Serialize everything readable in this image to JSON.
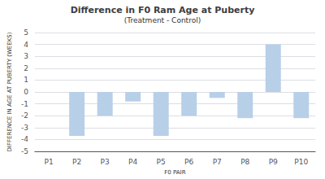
{
  "chart_data": {
    "type": "bar",
    "title": "Difference in F0 Ram Age at Puberty",
    "subtitle": "(Treatment - Control)",
    "x_label": "F0 PAIR",
    "y_label": "DIFFERENCE IN AGE AT PUBERTY (WEEKS)",
    "categories": [
      "P1",
      "P2",
      "P3",
      "P4",
      "P5",
      "P6",
      "P7",
      "P8",
      "P9",
      "P10"
    ],
    "values": [
      0,
      -3.7,
      -2.0,
      -0.8,
      -3.7,
      -2.0,
      -0.5,
      -2.2,
      4.0,
      -2.2
    ],
    "color": "#b8cfe8",
    "ylim": [
      -5,
      5
    ],
    "yticks": [
      -5,
      -4,
      -3,
      -2,
      -1,
      0,
      1,
      2,
      3,
      4,
      5
    ],
    "grid": true
  }
}
